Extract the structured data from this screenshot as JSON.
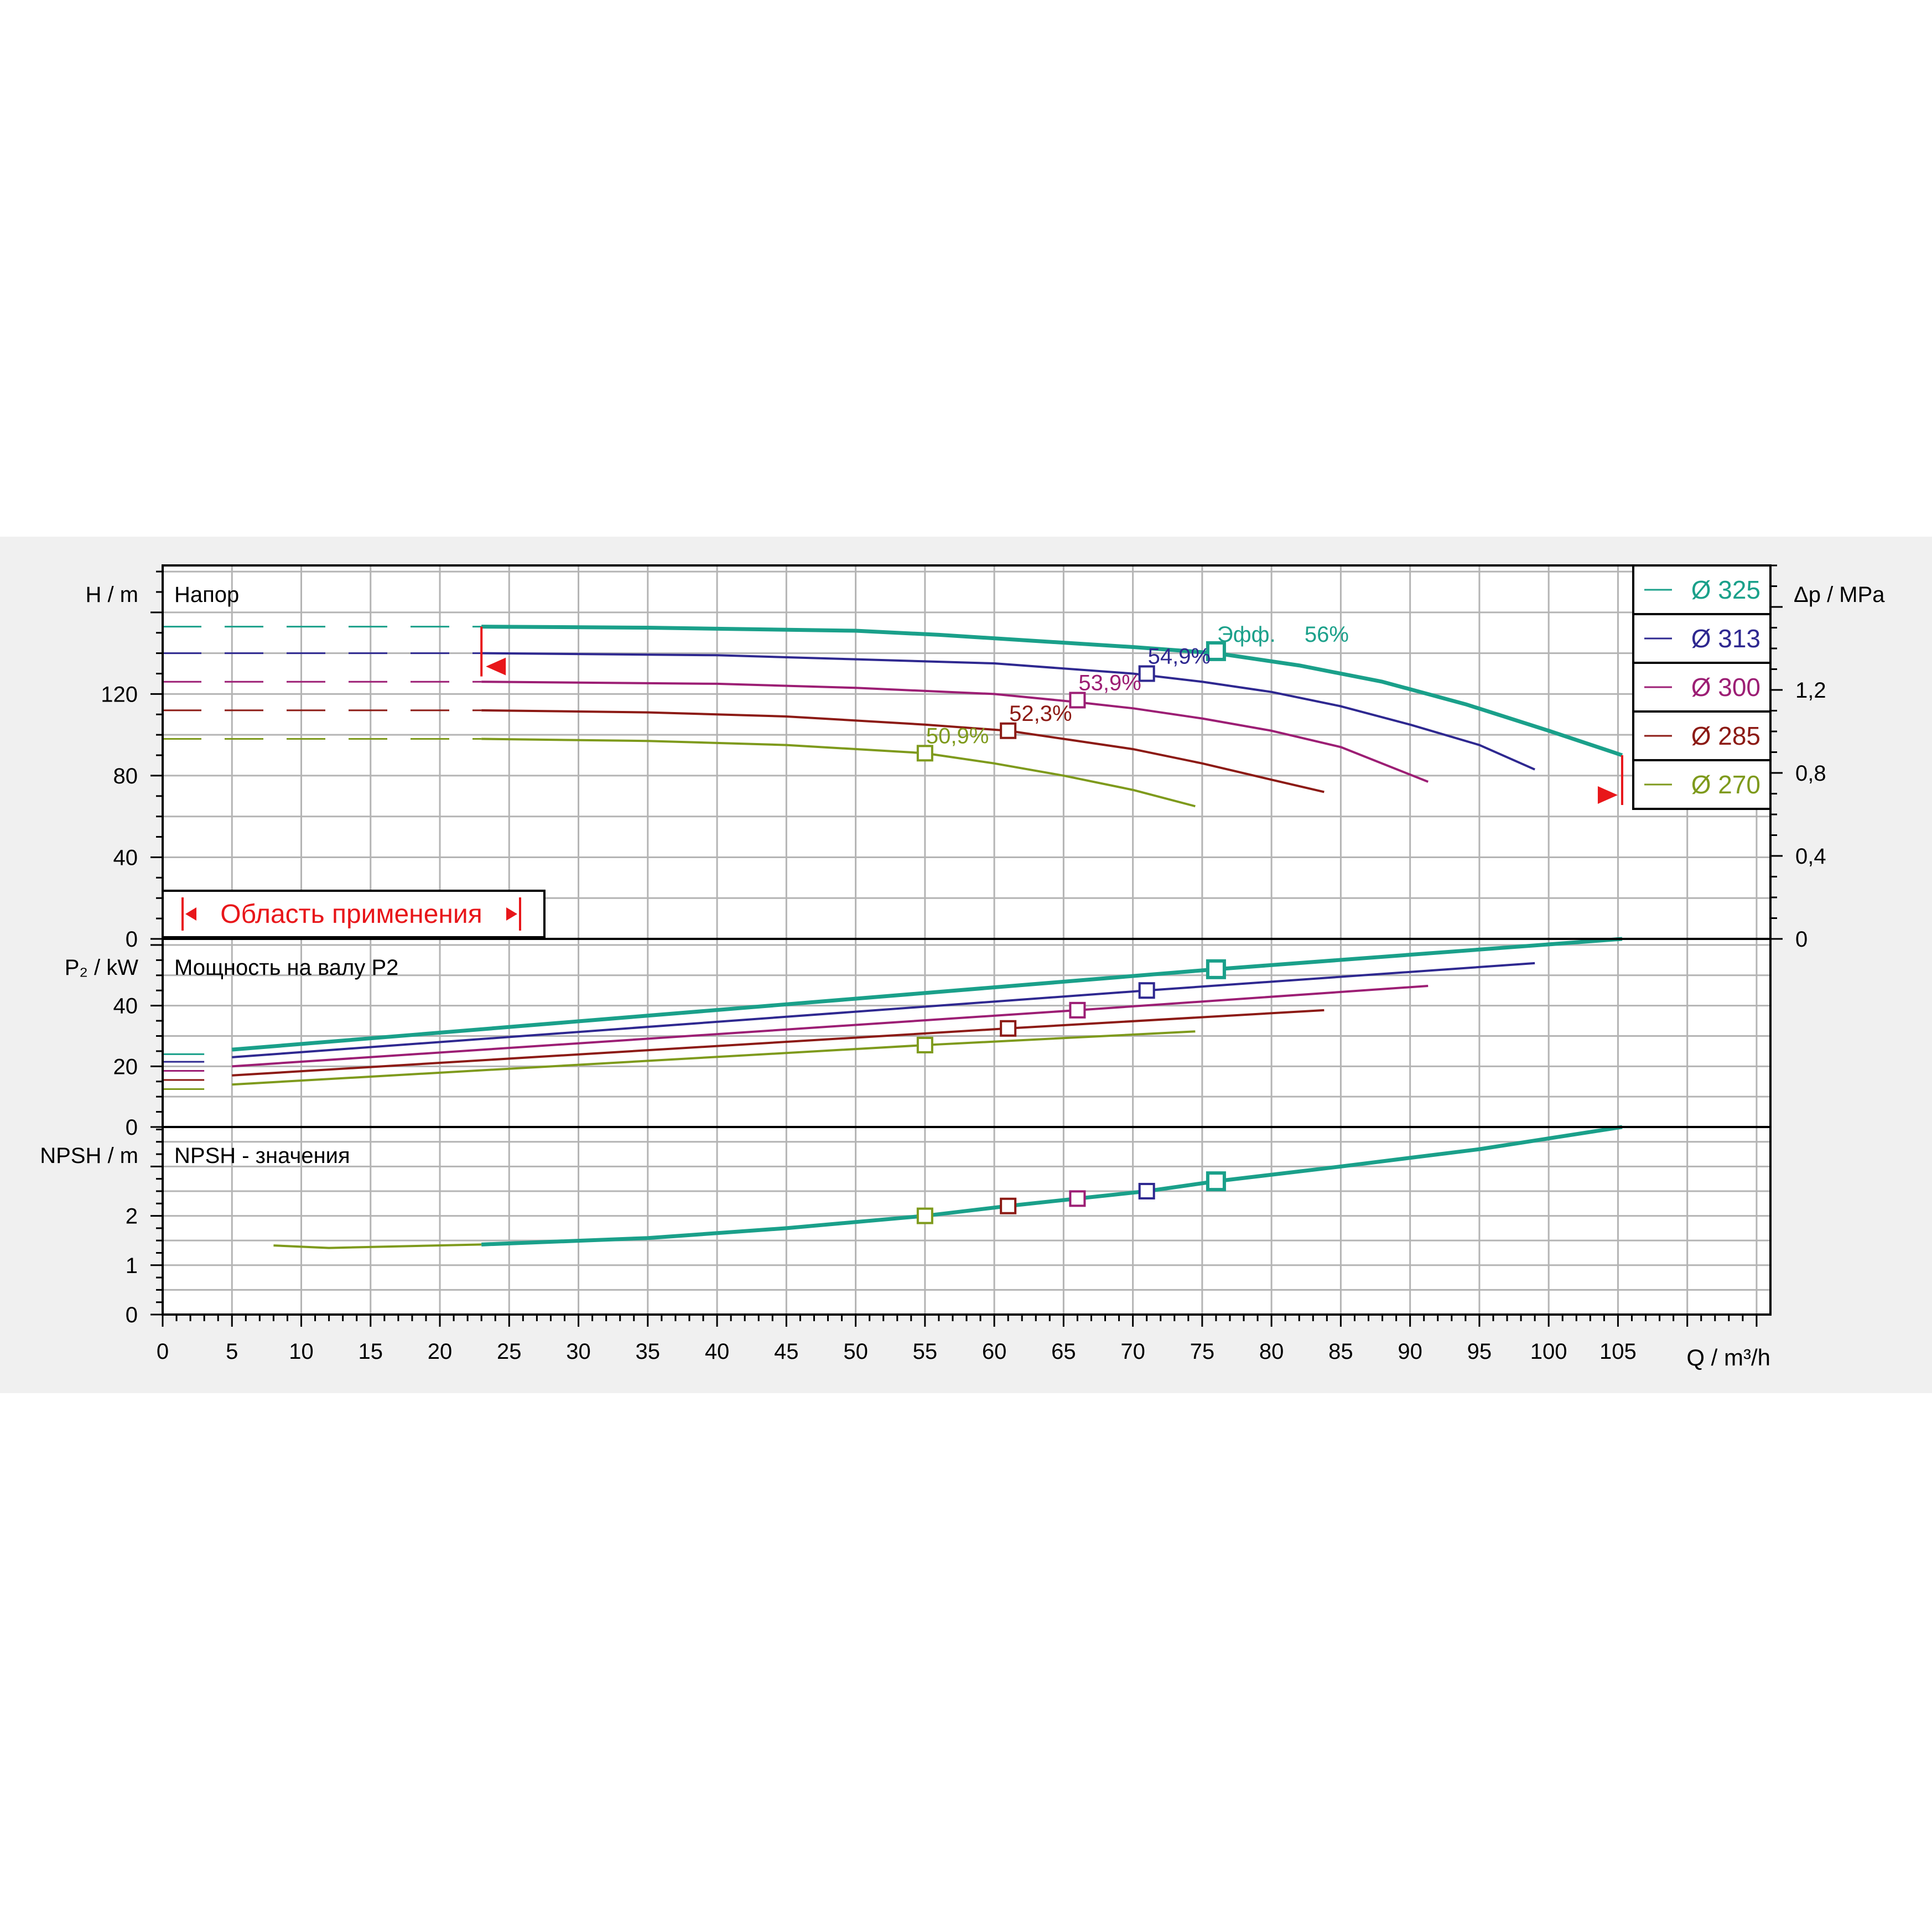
{
  "colors": {
    "d325": "#1aa08a",
    "d313": "#2e2890",
    "d300": "#9c1e74",
    "d285": "#8c1a14",
    "d270": "#7e9a1c",
    "red": "#e8161a",
    "grid": "#b4b4b4",
    "axis": "#000000"
  },
  "head_panel": {
    "axis_label": "H / m",
    "title": "Напор",
    "right_axis_label": "Δp / MPa",
    "y_ticks": [
      "0",
      "40",
      "80",
      "120"
    ],
    "right_ticks": [
      "0",
      "0,4",
      "0,8",
      "1,2"
    ],
    "efficiency_prefix": "Эфф.",
    "range_label": "Область применения"
  },
  "power_panel": {
    "axis_label": "P₂ / kW",
    "title": "Мощность на валу P2",
    "y_ticks": [
      "0",
      "20",
      "40"
    ]
  },
  "npsh_panel": {
    "axis_label": "NPSH / m",
    "title": "NPSH - значения",
    "y_ticks": [
      "0",
      "1",
      "2"
    ]
  },
  "x_axis": {
    "label": "Q / m³/h",
    "ticks": [
      "0",
      "5",
      "10",
      "15",
      "20",
      "25",
      "30",
      "35",
      "40",
      "45",
      "50",
      "55",
      "60",
      "65",
      "70",
      "75",
      "80",
      "85",
      "90",
      "95",
      "100",
      "105"
    ]
  },
  "legend": [
    "Ø 325",
    "Ø 313",
    "Ø 300",
    "Ø 285",
    "Ø 270"
  ],
  "chart_data": {
    "type": "line",
    "x_unit": "m³/h",
    "xlim": [
      0,
      116
    ],
    "head": {
      "ylabel": "H / m",
      "ylim": [
        0,
        183
      ],
      "right_ylim_MPa": [
        0,
        1.8
      ],
      "series": [
        {
          "name": "Ø 325",
          "color_key": "d325",
          "dashed_y": 153,
          "x": [
            23,
            35,
            50,
            56,
            63,
            70,
            76,
            82,
            88,
            94,
            100,
            105.3
          ],
          "y": [
            153,
            152.5,
            151,
            149,
            146,
            143,
            140,
            134,
            126,
            115,
            102,
            90
          ],
          "bep": {
            "x": 76,
            "y": 141,
            "label": "56%"
          }
        },
        {
          "name": "Ø 313",
          "color_key": "d313",
          "dashed_y": 140,
          "x": [
            23,
            40,
            50,
            60,
            70,
            75,
            80,
            85,
            90,
            95,
            99
          ],
          "y": [
            140,
            139,
            137,
            135,
            130,
            126,
            121,
            114,
            105,
            95,
            83
          ],
          "bep": {
            "x": 71,
            "y": 130,
            "label": "54,9%"
          }
        },
        {
          "name": "Ø 300",
          "color_key": "d300",
          "dashed_y": 126,
          "x": [
            23,
            40,
            50,
            60,
            66,
            70,
            75,
            80,
            85,
            91.3
          ],
          "y": [
            126,
            125,
            123,
            120,
            116,
            113,
            108,
            102,
            94,
            77
          ],
          "bep": {
            "x": 66,
            "y": 117,
            "label": "53,9%"
          }
        },
        {
          "name": "Ø 285",
          "color_key": "d285",
          "dashed_y": 112,
          "x": [
            23,
            35,
            45,
            55,
            61,
            65,
            70,
            75,
            80,
            83.8
          ],
          "y": [
            112,
            111,
            109,
            105,
            102,
            98,
            93,
            86,
            78,
            72
          ],
          "bep": {
            "x": 61,
            "y": 102,
            "label": "52,3%"
          }
        },
        {
          "name": "Ø 270",
          "color_key": "d270",
          "dashed_y": 98,
          "x": [
            23,
            35,
            45,
            55,
            60,
            65,
            70,
            74.5
          ],
          "y": [
            98,
            97,
            95,
            91,
            86,
            80,
            73,
            65
          ],
          "bep": {
            "x": 55,
            "y": 91,
            "label": "50,9%"
          }
        }
      ],
      "operating_range": {
        "q_min": 23,
        "q_max": 105.3
      }
    },
    "power": {
      "ylabel": "P₂ / kW",
      "ylim": [
        0,
        62
      ],
      "series": [
        {
          "name": "Ø 325",
          "color_key": "d325",
          "x": [
            5,
            76,
            105.3
          ],
          "y": [
            25.5,
            52,
            62
          ],
          "start": 24,
          "bep": {
            "x": 76,
            "y": 52
          }
        },
        {
          "name": "Ø 313",
          "color_key": "d313",
          "x": [
            5,
            71,
            99
          ],
          "y": [
            23,
            45,
            54
          ],
          "start": 21.5,
          "bep": {
            "x": 71,
            "y": 45
          }
        },
        {
          "name": "Ø 300",
          "color_key": "d300",
          "x": [
            5,
            66,
            91.3
          ],
          "y": [
            20,
            38.5,
            46.5
          ],
          "start": 18.5,
          "bep": {
            "x": 66,
            "y": 38.5
          }
        },
        {
          "name": "Ø 285",
          "color_key": "d285",
          "x": [
            5,
            61,
            83.8
          ],
          "y": [
            17,
            32.5,
            38.5
          ],
          "start": 15.5,
          "bep": {
            "x": 61,
            "y": 32.5
          }
        },
        {
          "name": "Ø 270",
          "color_key": "d270",
          "x": [
            5,
            55,
            74.5
          ],
          "y": [
            14,
            27,
            31.5
          ],
          "start": 12.5,
          "bep": {
            "x": 55,
            "y": 27
          }
        }
      ]
    },
    "npsh": {
      "ylabel": "NPSH / m",
      "ylim": [
        0,
        3.8
      ],
      "curve": {
        "x": [
          8,
          12,
          23,
          35,
          45,
          55,
          61,
          66,
          71,
          76,
          85,
          95,
          105.3
        ],
        "y": [
          1.4,
          1.35,
          1.42,
          1.55,
          1.75,
          2.0,
          2.2,
          2.35,
          2.5,
          2.7,
          3.0,
          3.35,
          3.8
        ]
      },
      "points": [
        {
          "name": "Ø 270",
          "color_key": "d270",
          "x": 55,
          "y": 2.0
        },
        {
          "name": "Ø 285",
          "color_key": "d285",
          "x": 61,
          "y": 2.2
        },
        {
          "name": "Ø 300",
          "color_key": "d300",
          "x": 66,
          "y": 2.35
        },
        {
          "name": "Ø 313",
          "color_key": "d313",
          "x": 71,
          "y": 2.5
        },
        {
          "name": "Ø 325",
          "color_key": "d325",
          "x": 76,
          "y": 2.7
        }
      ]
    }
  }
}
